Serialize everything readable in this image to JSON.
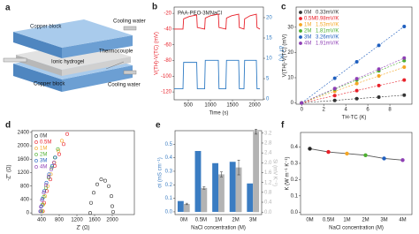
{
  "diagram": {
    "label": "a",
    "texts": [
      "Copper block",
      "Cooling water",
      "Thermocouple",
      "Ionic hydrogel",
      "Copper block",
      "Cooling water"
    ]
  },
  "chart_data": [
    {
      "type": "line",
      "label": "b",
      "annotation": "PAA-PEO-3MNaCl",
      "xlabel": "Time (s)",
      "ylabel": "V(TH)-V(TC) (mV)",
      "y2label": "ΔT (K)",
      "colored_axes": true,
      "x": [
        180,
        380,
        395,
        520,
        690,
        705,
        870,
        885,
        1000,
        1180,
        1195,
        1350,
        1365,
        1480,
        1640,
        1655,
        1760,
        1775,
        1900,
        2040,
        2055,
        2120
      ],
      "series": [
        {
          "color": "#e8212a",
          "values": [
            -40,
            -40,
            -27,
            -24,
            -22,
            -38,
            -40,
            -26,
            -23,
            -21,
            -38,
            -40,
            -26,
            -23,
            -21,
            -38,
            -40,
            -27,
            -23,
            -21,
            -38,
            -40
          ]
        },
        {
          "color": "#2f7bc4",
          "axis": "y2",
          "values": [
            2.5,
            2.5,
            9,
            9,
            9,
            2.5,
            2.5,
            9.5,
            9.5,
            9.5,
            2.5,
            2.5,
            9.5,
            9.5,
            9.5,
            2.5,
            2.5,
            9.5,
            9.5,
            9.5,
            2.5,
            2.5
          ]
        }
      ],
      "xlim": [
        180,
        2200
      ],
      "xticks": [
        500,
        1000,
        1500,
        2000
      ],
      "ylim": [
        -130,
        -12
      ],
      "yticks": [
        -120,
        -100,
        -80,
        -60,
        -40,
        -20
      ],
      "y2lim": [
        -0.2,
        22.6
      ],
      "y2ticks": [
        0,
        5,
        10,
        15,
        20
      ]
    },
    {
      "type": "scatter",
      "label": "c",
      "xlabel": "TH-TC (K)",
      "ylabel": "V(TH)-V(TC) (mV)",
      "legend": "upper left",
      "fit_line": "dashed",
      "x": [
        0,
        3,
        5,
        7,
        9.3
      ],
      "series": [
        {
          "name": "0M",
          "annotation": "0.33mV/K",
          "color": "#333333",
          "values": [
            0,
            1.0,
            1.7,
            2.3,
            3.1
          ]
        },
        {
          "name": "0.5M",
          "annotation": "0.98mV/K",
          "color": "#e8212a",
          "values": [
            0,
            2.9,
            4.9,
            6.9,
            9.1
          ]
        },
        {
          "name": "1M",
          "annotation": "1.53mV/K",
          "color": "#f5a623",
          "values": [
            0,
            4.6,
            7.7,
            10.7,
            14.2
          ]
        },
        {
          "name": "2M",
          "annotation": "1.81mV/K",
          "color": "#4caf2f",
          "values": [
            0,
            5.4,
            9.1,
            12.7,
            16.8
          ]
        },
        {
          "name": "3M",
          "annotation": "3.26mV/K",
          "color": "#1f5fbf",
          "values": [
            0,
            9.8,
            16.3,
            22.8,
            30.3
          ]
        },
        {
          "name": "4M",
          "annotation": "1.91mV/K",
          "color": "#8e3fb5",
          "values": [
            0,
            5.7,
            9.6,
            13.4,
            17.8
          ]
        }
      ],
      "xlim": [
        -0.5,
        10
      ],
      "xticks": [
        0,
        2,
        4,
        6,
        8
      ],
      "ylim": [
        -0.5,
        38
      ],
      "yticks": [
        0,
        10,
        20,
        30
      ]
    },
    {
      "type": "scatter",
      "label": "d",
      "xlabel": "Z' (Ω)",
      "ylabel": "-Z'' (Ω)",
      "legend": "upper left",
      "hollow_markers": true,
      "series": [
        {
          "name": "0M",
          "color": "#333333",
          "x": [
            1500,
            1520,
            1580,
            1660,
            1750,
            1840,
            1920,
            1980,
            2000,
            2020
          ],
          "values": [
            0,
            300,
            600,
            850,
            1000,
            960,
            800,
            500,
            200,
            30
          ]
        },
        {
          "name": "0.5M",
          "color": "#e8212a",
          "x": [
            430,
            460,
            520,
            600,
            700,
            800,
            900,
            980
          ],
          "values": [
            50,
            300,
            650,
            1000,
            1400,
            1750,
            2050,
            2350
          ]
        },
        {
          "name": "1M",
          "color": "#f5a623",
          "x": [
            420,
            440,
            480,
            540,
            610,
            690,
            780,
            860
          ],
          "values": [
            50,
            250,
            500,
            800,
            1150,
            1500,
            1850,
            2150
          ]
        },
        {
          "name": "2M",
          "color": "#4caf2f",
          "x": [
            400,
            420,
            450,
            500,
            560,
            630,
            700,
            770
          ],
          "values": [
            50,
            250,
            480,
            750,
            1050,
            1350,
            1650,
            1900
          ]
        },
        {
          "name": "3M",
          "color": "#1f5fbf",
          "x": [
            380,
            395,
            420,
            460,
            510,
            570,
            640,
            710
          ],
          "values": [
            50,
            200,
            420,
            650,
            900,
            1150,
            1400,
            1650
          ]
        },
        {
          "name": "4M",
          "color": "#8e3fb5",
          "x": [
            370,
            385,
            410,
            450,
            500,
            560,
            620,
            680
          ],
          "values": [
            50,
            180,
            380,
            600,
            830,
            1080,
            1300,
            1500
          ]
        }
      ],
      "xlim": [
        180,
        2500
      ],
      "xticks": [
        400,
        800,
        1200,
        1600,
        2000
      ],
      "ylim": [
        -50,
        2450
      ],
      "yticks": [
        0,
        400,
        800,
        1200,
        1600,
        2000,
        2400
      ]
    },
    {
      "type": "bar",
      "label": "e",
      "xlabel": "NaCl concentration (M)",
      "ylabel": "σi (mS cm⁻¹)",
      "y2label": "Si (mV K⁻¹)",
      "colored_axes": true,
      "categories": [
        "0M",
        "0.5M",
        "1M",
        "2M",
        "3M"
      ],
      "series": [
        {
          "color": "#3a7cc2",
          "values": [
            0.08,
            0.45,
            0.36,
            0.37,
            0.21
          ]
        },
        {
          "color": "#b3b3b3",
          "axis": "y2",
          "values": [
            0.33,
            0.98,
            1.53,
            1.81,
            3.26
          ],
          "errors": [
            0.03,
            0.05,
            0.1,
            0.3,
            0.1
          ]
        }
      ],
      "ylim": [
        -0.02,
        0.6
      ],
      "yticks": [
        {
          "value": 0,
          "label": "0.0"
        },
        0.1,
        0.2,
        0.3,
        0.4,
        0.5
      ],
      "y2lim": [
        -0.1,
        3.3
      ],
      "y2ticks": [
        {
          "value": 0,
          "label": "0.0"
        },
        0.4,
        0.8,
        1.2,
        1.6,
        {
          "value": 2,
          "label": "2.0"
        },
        2.4,
        2.8,
        3.2
      ]
    },
    {
      "type": "line",
      "label": "f",
      "xlabel": "NaCl concentration (M)",
      "ylabel": "K (W m⁻¹ K⁻¹)",
      "categories": [
        "0M",
        "0.5M",
        "1M",
        "2M",
        "3M",
        "4M"
      ],
      "series": [
        {
          "color": "#555555",
          "values": [
            0.39,
            0.37,
            0.36,
            0.35,
            0.33,
            0.32
          ]
        }
      ],
      "point_colors": [
        "#222222",
        "#e8212a",
        "#f5a623",
        "#4caf2f",
        "#1f5fbf",
        "#8e3fb5"
      ],
      "ylim": [
        -0.015,
        0.49
      ],
      "yticks": [
        {
          "value": 0,
          "label": "0.0"
        },
        0.1,
        0.2,
        0.3,
        0.4
      ]
    }
  ]
}
